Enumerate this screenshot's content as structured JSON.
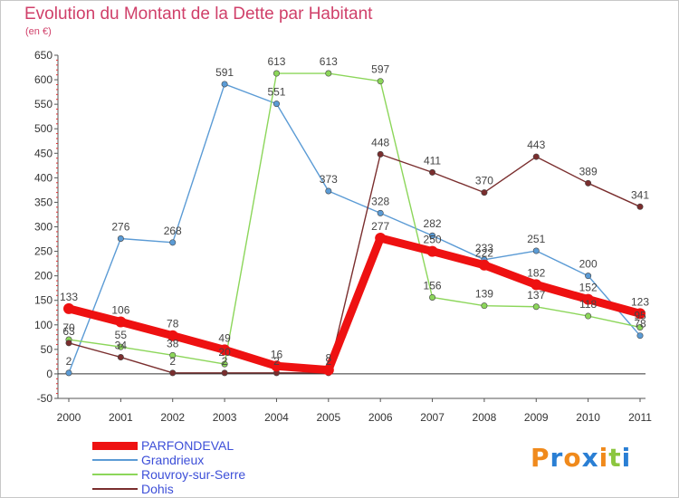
{
  "header": {
    "title": "Evolution du Montant de la Dette par Habitant",
    "subtitle": "(en €)"
  },
  "brand": {
    "letters": [
      "P",
      "r",
      "o",
      "x",
      "i",
      "t",
      "i"
    ],
    "colors": [
      "#f08a1c",
      "#2a7fd4",
      "#f08a1c",
      "#2a7fd4",
      "#f08a1c",
      "#8cc63f",
      "#2a7fd4"
    ]
  },
  "chart_data": {
    "type": "line",
    "title": "Evolution du Montant de la Dette par Habitant",
    "subtitle": "(en €)",
    "x": [
      "2000",
      "2001",
      "2002",
      "2003",
      "2004",
      "2005",
      "2006",
      "2007",
      "2008",
      "2009",
      "2010",
      "2011"
    ],
    "ylim": [
      -50,
      650
    ],
    "yticks": [
      -50,
      0,
      50,
      100,
      150,
      200,
      250,
      300,
      350,
      400,
      450,
      500,
      550,
      600,
      650
    ],
    "grid": false,
    "legend_position": "bottom-left",
    "series": [
      {
        "name": "PARFONDEVAL",
        "values": [
          133,
          106,
          78,
          49,
          16,
          8,
          277,
          250,
          222,
          182,
          152,
          123
        ],
        "color": "#ee1111",
        "emphasis": true
      },
      {
        "name": "Grandrieux",
        "values": [
          2,
          276,
          268,
          591,
          551,
          373,
          328,
          282,
          233,
          251,
          200,
          78
        ],
        "color": "#5b9bd5",
        "emphasis": false
      },
      {
        "name": "Rouvroy-sur-Serre",
        "values": [
          70,
          55,
          38,
          20,
          613,
          613,
          597,
          156,
          139,
          137,
          118,
          95
        ],
        "color": "#8cd65a",
        "emphasis": false
      },
      {
        "name": "Dohis",
        "values": [
          63,
          34,
          2,
          2,
          2,
          2,
          448,
          411,
          370,
          443,
          389,
          341
        ],
        "color": "#7a2e2e",
        "emphasis": false
      }
    ]
  }
}
